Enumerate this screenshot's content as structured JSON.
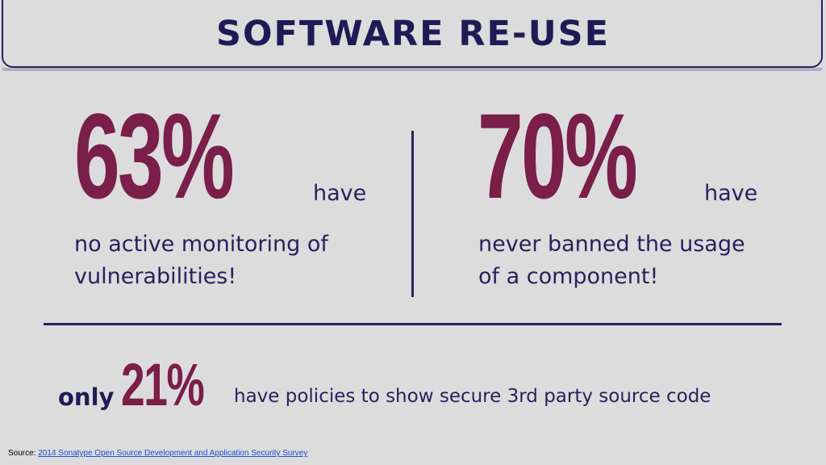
{
  "title": "Software re-use",
  "stats": [
    {
      "value": "63%",
      "qualifier": "have",
      "description_line1": "no active monitoring of",
      "description_line2": "vulnerabilities!"
    },
    {
      "value": "70%",
      "qualifier": "have",
      "description_line1": "never banned the usage",
      "description_line2": "of a component!"
    }
  ],
  "bottom": {
    "prefix": "only",
    "value": "21%",
    "text": "have policies to show secure 3rd party source code"
  },
  "source": {
    "label": "Source:",
    "link_text": "2014 Sonatype Open Source Development and Application Security Survey"
  },
  "colors": {
    "background": "#dcdcdc",
    "title": "#1e1b55",
    "accent": "#7a1e4a",
    "text": "#2a1f5e",
    "link": "#1a4fd6"
  }
}
